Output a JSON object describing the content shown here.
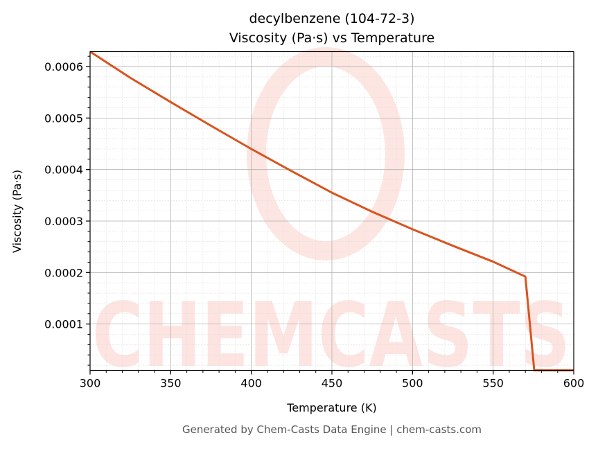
{
  "chart_data": {
    "type": "line",
    "title": "decylbenzene (104-72-3)",
    "subtitle": "Viscosity (Pa·s) vs Temperature",
    "xlabel": "Temperature (K)",
    "ylabel": "Viscosity (Pa·s)",
    "xlim": [
      300,
      600
    ],
    "ylim": [
      1e-05,
      0.000629
    ],
    "xticks": [
      300,
      350,
      400,
      450,
      500,
      550,
      600
    ],
    "xtick_labels": [
      "300",
      "350",
      "400",
      "450",
      "500",
      "550",
      "600"
    ],
    "yticks": [
      0.0001,
      0.0002,
      0.0003,
      0.0004,
      0.0005,
      0.0006
    ],
    "ytick_labels": [
      "0.0001",
      "0.0002",
      "0.0003",
      "0.0004",
      "0.0005",
      "0.0006"
    ],
    "grid": true,
    "line_color": "#d9531e",
    "series": [
      {
        "x": [
          300,
          325,
          350,
          375,
          400,
          425,
          450,
          475,
          500,
          525,
          550,
          570,
          575.5,
          600
        ],
        "y": [
          0.000629,
          0.000578,
          0.000531,
          0.000485,
          0.00044,
          0.000397,
          0.000355,
          0.000318,
          0.000284,
          0.000252,
          0.000221,
          0.000192,
          1e-05,
          1e-05
        ]
      }
    ]
  },
  "watermark": "CHEMCASTS",
  "footer": "Generated by Chem-Casts Data Engine | chem-casts.com"
}
